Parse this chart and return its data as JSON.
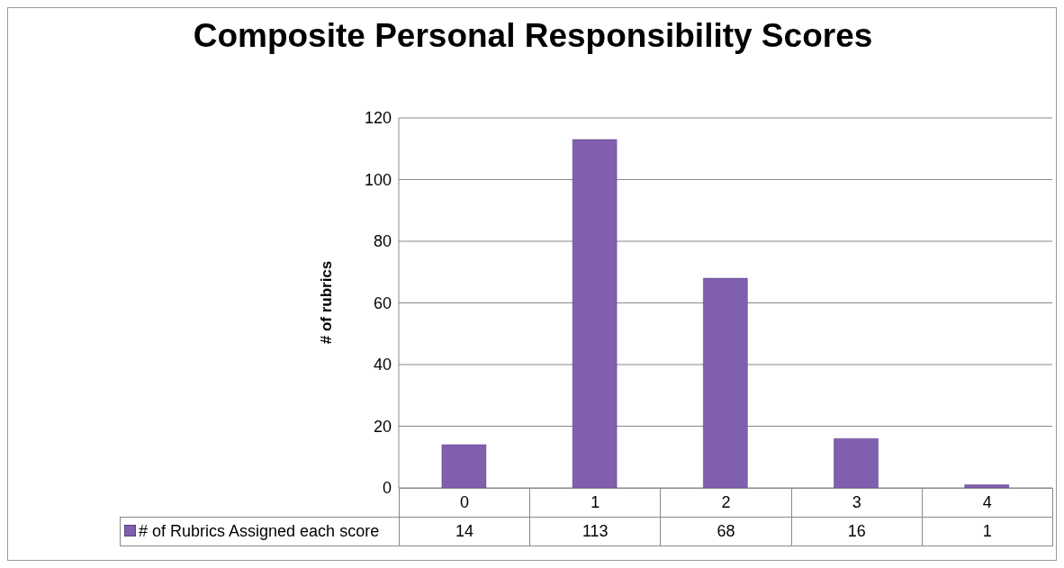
{
  "chart_data": {
    "type": "bar",
    "title": "Composite Personal Responsibility Scores",
    "ylabel": "# of rubrics",
    "categories": [
      "0",
      "1",
      "2",
      "3",
      "4"
    ],
    "series": [
      {
        "name": "# of Rubrics Assigned each score",
        "color": "#7f5fae",
        "values": [
          14,
          113,
          68,
          16,
          1
        ]
      }
    ],
    "ylim": [
      0,
      120
    ],
    "yticks": [
      0,
      20,
      40,
      60,
      80,
      100,
      120
    ],
    "grid": "y",
    "legend": "bottom",
    "data_labels": true
  }
}
